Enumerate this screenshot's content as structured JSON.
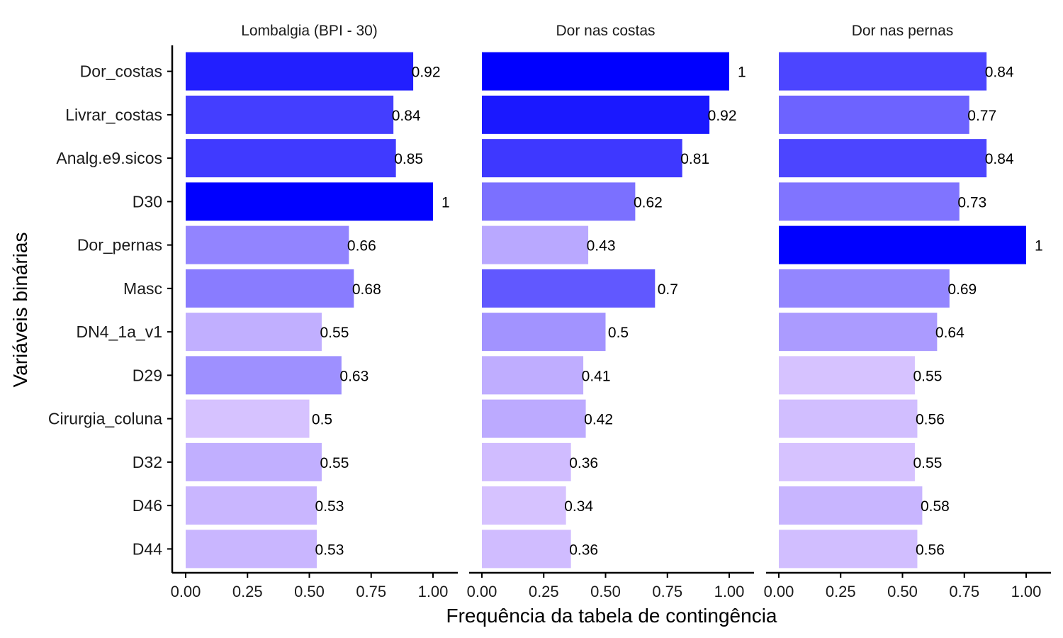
{
  "chart_data": {
    "type": "bar",
    "orientation": "horizontal",
    "categories": [
      "Dor_costas",
      "Livrar_costas",
      "Analg.e9.sicos",
      "D30",
      "Dor_pernas",
      "Masc",
      "DN4_1a_v1",
      "D29",
      "Cirurgia_coluna",
      "D32",
      "D46",
      "D44"
    ],
    "xlabel": "Frequência da tabela de contingência",
    "ylabel": "Variáveis binárias",
    "xlim": [
      0,
      1
    ],
    "xticks": [
      "0.00",
      "0.25",
      "0.50",
      "0.75",
      "1.00"
    ],
    "xtick_values": [
      0,
      0.25,
      0.5,
      0.75,
      1
    ],
    "grid": false,
    "color_scale": {
      "low": "#d6c2ff",
      "high": "#0000ff"
    },
    "facets": [
      {
        "title": "Lombalgia (BPI - 30)",
        "values": [
          0.92,
          0.84,
          0.85,
          1,
          0.66,
          0.68,
          0.55,
          0.63,
          0.5,
          0.55,
          0.53,
          0.53
        ],
        "labels": [
          "0.92",
          "0.84",
          "0.85",
          "1",
          "0.66",
          "0.68",
          "0.55",
          "0.63",
          "0.5",
          "0.55",
          "0.53",
          "0.53"
        ]
      },
      {
        "title": "Dor nas costas",
        "values": [
          1,
          0.92,
          0.81,
          0.62,
          0.43,
          0.7,
          0.5,
          0.41,
          0.42,
          0.36,
          0.34,
          0.36
        ],
        "labels": [
          "1",
          "0.92",
          "0.81",
          "0.62",
          "0.43",
          "0.7",
          "0.5",
          "0.41",
          "0.42",
          "0.36",
          "0.34",
          "0.36"
        ]
      },
      {
        "title": "Dor nas pernas",
        "values": [
          0.84,
          0.77,
          0.84,
          0.73,
          1,
          0.69,
          0.64,
          0.55,
          0.56,
          0.55,
          0.58,
          0.56
        ],
        "labels": [
          "0.84",
          "0.77",
          "0.84",
          "0.73",
          "1",
          "0.69",
          "0.64",
          "0.55",
          "0.56",
          "0.55",
          "0.58",
          "0.56"
        ]
      }
    ]
  }
}
